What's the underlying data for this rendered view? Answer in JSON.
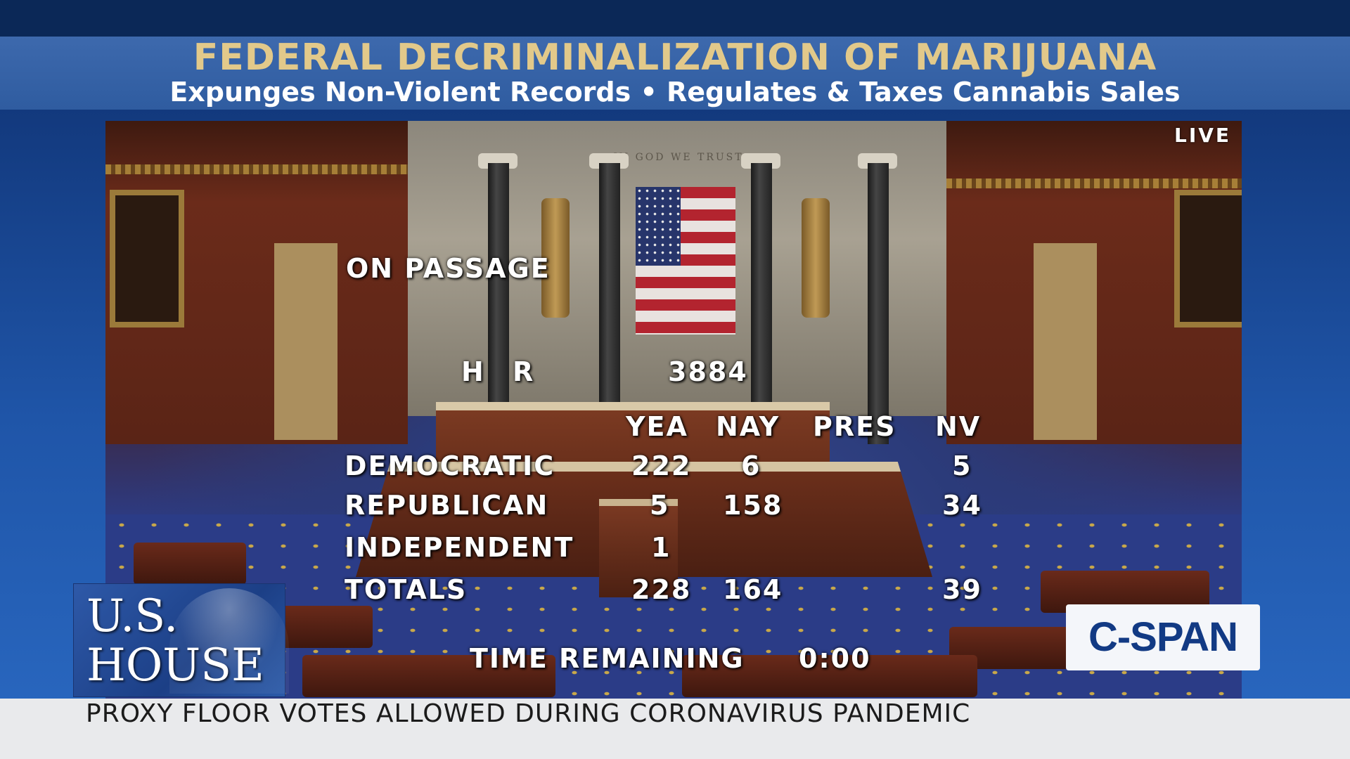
{
  "banner": {
    "title": "FEDERAL DECRIMINALIZATION OF MARIJUANA",
    "subtitle": "Expunges Non-Violent Records • Regulates & Taxes Cannabis Sales"
  },
  "live_label": "LIVE",
  "vote": {
    "motion": "ON PASSAGE",
    "bill_prefix": "H R",
    "bill_number": "3884",
    "columns": [
      "YEA",
      "NAY",
      "PRES",
      "NV"
    ],
    "rows": [
      {
        "party": "DEMOCRATIC",
        "yea": "222",
        "nay": "6",
        "pres": "",
        "nv": "5"
      },
      {
        "party": "REPUBLICAN",
        "yea": "5",
        "nay": "158",
        "pres": "",
        "nv": "34"
      },
      {
        "party": "INDEPENDENT",
        "yea": "1",
        "nay": "",
        "pres": "",
        "nv": ""
      },
      {
        "party": "TOTALS",
        "yea": "228",
        "nay": "164",
        "pres": "",
        "nv": "39"
      }
    ],
    "time_label": "TIME REMAINING",
    "time_value": "0:00"
  },
  "chamber_inscription": "IN GOD WE TRUST",
  "house_logo": {
    "line1": "U.S.",
    "line2": "HOUSE"
  },
  "network_logo": "C-SPAN",
  "crawl": "PROXY FLOOR VOTES ALLOWED DURING CORONAVIRUS PANDEMIC",
  "colors": {
    "title_gold": "#e2c98a",
    "banner_blue": "#3d69ad",
    "network_blue": "#123a84"
  }
}
